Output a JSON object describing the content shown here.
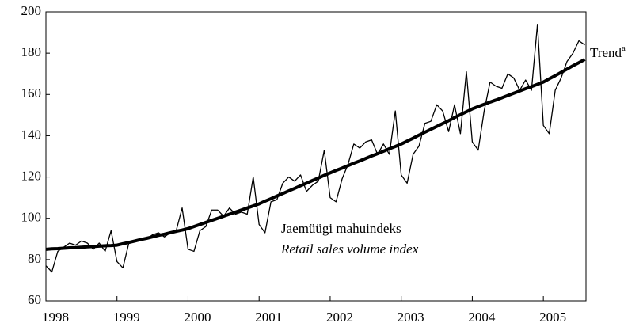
{
  "chart_data": {
    "type": "line",
    "x": [
      1998,
      1998.083,
      1998.167,
      1998.25,
      1998.333,
      1998.417,
      1998.5,
      1998.583,
      1998.667,
      1998.75,
      1998.833,
      1998.917,
      1999,
      1999.083,
      1999.167,
      1999.25,
      1999.333,
      1999.417,
      1999.5,
      1999.583,
      1999.667,
      1999.75,
      1999.833,
      1999.917,
      2000,
      2000.083,
      2000.167,
      2000.25,
      2000.333,
      2000.417,
      2000.5,
      2000.583,
      2000.667,
      2000.75,
      2000.833,
      2000.917,
      2001,
      2001.083,
      2001.167,
      2001.25,
      2001.333,
      2001.417,
      2001.5,
      2001.583,
      2001.667,
      2001.75,
      2001.833,
      2001.917,
      2002,
      2002.083,
      2002.167,
      2002.25,
      2002.333,
      2002.417,
      2002.5,
      2002.583,
      2002.667,
      2002.75,
      2002.833,
      2002.917,
      2003,
      2003.083,
      2003.167,
      2003.25,
      2003.333,
      2003.417,
      2003.5,
      2003.583,
      2003.667,
      2003.75,
      2003.833,
      2003.917,
      2004,
      2004.083,
      2004.167,
      2004.25,
      2004.333,
      2004.417,
      2004.5,
      2004.583,
      2004.667,
      2004.75,
      2004.833,
      2004.917,
      2005,
      2005.083,
      2005.167,
      2005.25,
      2005.333,
      2005.417,
      2005.5,
      2005.583
    ],
    "series": [
      {
        "name": "Jaemüügi mahuindeks",
        "name_en": "Retail sales volume index",
        "color": "#000000",
        "width": 1.3,
        "values": [
          77,
          74,
          84,
          86,
          88,
          87,
          89,
          88,
          85,
          88,
          84,
          94,
          79,
          76,
          88,
          89,
          90,
          90,
          92,
          93,
          91,
          93,
          94,
          105,
          85,
          84,
          94,
          96,
          104,
          104,
          101,
          105,
          102,
          103,
          102,
          120,
          97,
          93,
          108,
          109,
          117,
          120,
          118,
          121,
          113,
          116,
          118,
          133,
          110,
          108,
          119,
          126,
          136,
          134,
          137,
          138,
          131,
          136,
          131,
          152,
          121,
          117,
          131,
          135,
          146,
          147,
          155,
          152,
          142,
          155,
          141,
          171,
          137,
          133,
          152,
          166,
          164,
          163,
          170,
          168,
          162,
          167,
          162,
          194,
          145,
          141,
          162,
          168,
          176,
          180,
          186,
          184
        ]
      },
      {
        "name": "Trend",
        "note": "a",
        "color": "#000000",
        "width": 4,
        "values": [
          85,
          85.2,
          85.3,
          85.5,
          85.7,
          85.8,
          86,
          86.2,
          86.3,
          86.5,
          86.7,
          86.8,
          87,
          87.7,
          88.3,
          89,
          89.7,
          90.3,
          91,
          91.7,
          92.3,
          93,
          93.7,
          94.3,
          95,
          96,
          97,
          98,
          99,
          100,
          101,
          102,
          103,
          104,
          105,
          106,
          107,
          108.3,
          109.5,
          110.8,
          112,
          113.3,
          114.5,
          115.8,
          117,
          118.3,
          119.5,
          120.8,
          122,
          123.2,
          124.3,
          125.5,
          126.7,
          127.8,
          129,
          130.2,
          131.3,
          132.5,
          133.7,
          134.8,
          136,
          137.4,
          138.8,
          140.3,
          141.7,
          143.1,
          144.5,
          145.9,
          147.3,
          148.8,
          150.2,
          151.6,
          153,
          154.1,
          155.2,
          156.3,
          157.3,
          158.4,
          159.5,
          160.6,
          161.7,
          162.8,
          163.8,
          164.9,
          166,
          167.6,
          169.1,
          170.7,
          172.3,
          173.9,
          175.4,
          177
        ]
      }
    ],
    "xlim": [
      1998,
      2005.6
    ],
    "xticks": [
      1998,
      1999,
      2000,
      2001,
      2002,
      2003,
      2004,
      2005
    ],
    "ylim": [
      60,
      200
    ],
    "yticks": [
      60,
      80,
      100,
      120,
      140,
      160,
      180,
      200
    ]
  }
}
